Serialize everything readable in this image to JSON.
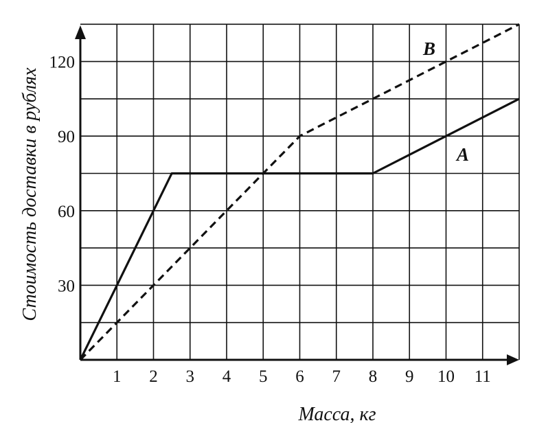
{
  "chart_data": {
    "type": "line",
    "xlabel": "Масса, кг",
    "ylabel": "Стоимость доставки в рублях",
    "xlim": [
      0,
      12
    ],
    "ylim": [
      0,
      135
    ],
    "x_ticks": [
      1,
      2,
      3,
      4,
      5,
      6,
      7,
      8,
      9,
      10,
      11
    ],
    "y_ticks": [
      30,
      60,
      90,
      120
    ],
    "grid": true,
    "grid_x_step": 1,
    "grid_y_step": 15,
    "series": [
      {
        "name": "A",
        "style": "solid",
        "points": [
          [
            0,
            0
          ],
          [
            1,
            30
          ],
          [
            2,
            60
          ],
          [
            2.5,
            75
          ],
          [
            5,
            75
          ],
          [
            8,
            75
          ],
          [
            10,
            90
          ],
          [
            12,
            105
          ]
        ]
      },
      {
        "name": "B",
        "style": "dashed",
        "points": [
          [
            0,
            0
          ],
          [
            1,
            15
          ],
          [
            2,
            30
          ],
          [
            3,
            45
          ],
          [
            4,
            60
          ],
          [
            5,
            75
          ],
          [
            6,
            90
          ],
          [
            8,
            105
          ],
          [
            10,
            120
          ],
          [
            12,
            135
          ]
        ]
      }
    ]
  }
}
